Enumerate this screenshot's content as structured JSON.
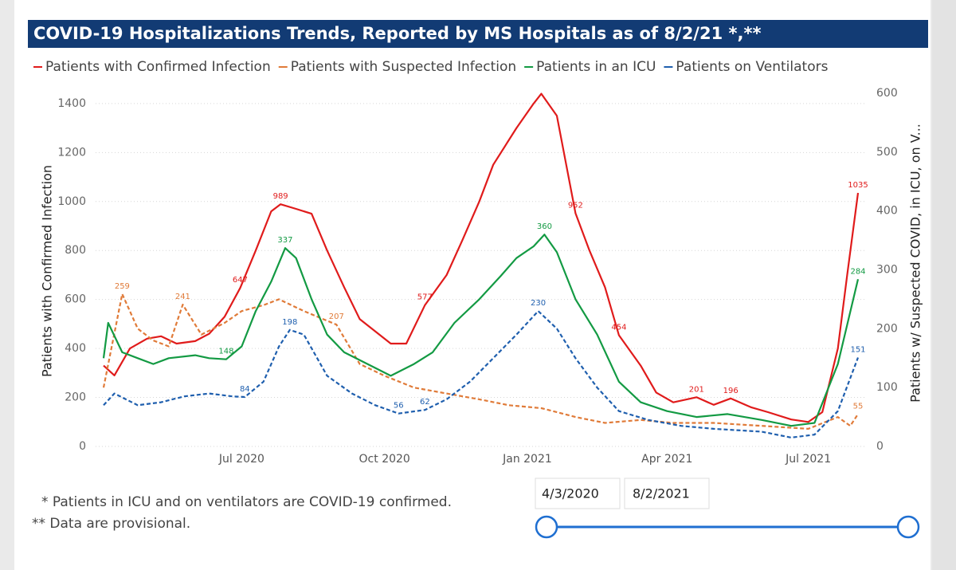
{
  "chart_data": {
    "type": "line",
    "title": "COVID-19 Hospitalizations Trends, Reported by MS Hospitals as of 8/2/21 *,**",
    "y_label": "Patients with Confirmed Infection",
    "y2_label": "Patients w/ Suspected COVID, in ICU, on V...",
    "xlim": [
      "2020-04-03",
      "2021-08-02"
    ],
    "xticks": [
      {
        "value": "2020-07-01",
        "label": "Jul 2020"
      },
      {
        "value": "2020-10-01",
        "label": "Oct 2020"
      },
      {
        "value": "2021-01-01",
        "label": "Jan 2021"
      },
      {
        "value": "2021-04-01",
        "label": "Apr 2021"
      },
      {
        "value": "2021-07-01",
        "label": "Jul 2021"
      }
    ],
    "ylim": [
      0,
      1442
    ],
    "yticks": [
      0,
      200,
      400,
      600,
      800,
      1000,
      1200,
      1400
    ],
    "y2lim": [
      0,
      600
    ],
    "y2ticks": [
      0,
      100,
      200,
      300,
      400,
      500,
      600
    ],
    "grid": true,
    "series": [
      {
        "name": "Patients with Confirmed Infection",
        "color": "#e01b1b",
        "dash": false,
        "x": [
          "2020-04-03",
          "2020-04-10",
          "2020-04-20",
          "2020-05-01",
          "2020-05-10",
          "2020-05-20",
          "2020-06-01",
          "2020-06-10",
          "2020-06-20",
          "2020-06-30",
          "2020-07-10",
          "2020-07-20",
          "2020-07-26",
          "2020-08-05",
          "2020-08-15",
          "2020-08-25",
          "2020-09-05",
          "2020-09-15",
          "2020-09-25",
          "2020-10-05",
          "2020-10-15",
          "2020-10-27",
          "2020-11-10",
          "2020-11-20",
          "2020-12-01",
          "2020-12-10",
          "2020-12-25",
          "2021-01-05",
          "2021-01-10",
          "2021-01-20",
          "2021-02-01",
          "2021-02-10",
          "2021-02-20",
          "2021-03-01",
          "2021-03-15",
          "2021-03-25",
          "2021-04-05",
          "2021-04-20",
          "2021-05-01",
          "2021-05-12",
          "2021-05-25",
          "2021-06-05",
          "2021-06-20",
          "2021-07-01",
          "2021-07-10",
          "2021-07-20",
          "2021-07-26",
          "2021-08-02"
        ],
        "values": [
          330,
          290,
          400,
          440,
          450,
          420,
          430,
          460,
          530,
          647,
          800,
          960,
          989,
          970,
          950,
          800,
          650,
          520,
          470,
          420,
          420,
          577,
          700,
          840,
          1000,
          1150,
          1300,
          1400,
          1440,
          1350,
          952,
          800,
          650,
          454,
          330,
          220,
          180,
          201,
          170,
          196,
          160,
          140,
          110,
          100,
          140,
          400,
          700,
          1035
        ],
        "value_labels": [
          null,
          null,
          null,
          null,
          null,
          null,
          null,
          null,
          null,
          "647",
          null,
          null,
          "989",
          null,
          null,
          null,
          null,
          null,
          null,
          null,
          null,
          "577",
          null,
          null,
          null,
          null,
          null,
          null,
          null,
          null,
          "952",
          null,
          null,
          "454",
          null,
          null,
          null,
          "201",
          null,
          "196",
          null,
          null,
          null,
          null,
          null,
          null,
          null,
          "1035"
        ]
      },
      {
        "name": "Patients with Suspected Infection",
        "color": "#e07b39",
        "dash": true,
        "axis": "y2",
        "x": [
          "2020-04-03",
          "2020-04-15",
          "2020-04-25",
          "2020-05-05",
          "2020-05-15",
          "2020-05-24",
          "2020-06-05",
          "2020-06-20",
          "2020-07-01",
          "2020-07-15",
          "2020-07-25",
          "2020-08-10",
          "2020-08-31",
          "2020-09-15",
          "2020-10-01",
          "2020-10-20",
          "2020-11-10",
          "2020-12-01",
          "2020-12-20",
          "2021-01-10",
          "2021-02-01",
          "2021-02-20",
          "2021-03-15",
          "2021-04-05",
          "2021-05-01",
          "2021-06-01",
          "2021-07-01",
          "2021-07-20",
          "2021-07-28",
          "2021-08-02"
        ],
        "values": [
          100,
          259,
          200,
          180,
          170,
          241,
          190,
          210,
          230,
          240,
          250,
          230,
          207,
          140,
          120,
          100,
          90,
          80,
          70,
          65,
          50,
          40,
          45,
          40,
          40,
          35,
          30,
          50,
          35,
          55
        ],
        "value_labels": [
          null,
          "259",
          null,
          null,
          null,
          "241",
          null,
          null,
          null,
          null,
          null,
          null,
          "207",
          null,
          null,
          null,
          null,
          null,
          null,
          null,
          null,
          null,
          null,
          null,
          null,
          null,
          null,
          null,
          null,
          "55"
        ]
      },
      {
        "name": "Patients in an ICU",
        "color": "#139a43",
        "dash": false,
        "axis": "y2",
        "x": [
          "2020-04-03",
          "2020-04-06",
          "2020-04-15",
          "2020-04-25",
          "2020-05-05",
          "2020-05-15",
          "2020-06-01",
          "2020-06-10",
          "2020-06-21",
          "2020-07-01",
          "2020-07-10",
          "2020-07-20",
          "2020-07-29",
          "2020-08-05",
          "2020-08-15",
          "2020-08-25",
          "2020-09-05",
          "2020-09-20",
          "2020-10-05",
          "2020-10-20",
          "2020-11-01",
          "2020-11-15",
          "2020-12-01",
          "2020-12-15",
          "2020-12-25",
          "2021-01-05",
          "2021-01-12",
          "2021-01-20",
          "2021-02-01",
          "2021-02-15",
          "2021-03-01",
          "2021-03-15",
          "2021-04-01",
          "2021-04-20",
          "2021-05-10",
          "2021-06-01",
          "2021-06-20",
          "2021-07-05",
          "2021-07-20",
          "2021-08-02"
        ],
        "values": [
          150,
          210,
          160,
          150,
          140,
          150,
          155,
          150,
          148,
          170,
          230,
          280,
          337,
          320,
          250,
          190,
          160,
          140,
          120,
          140,
          160,
          210,
          250,
          290,
          320,
          340,
          360,
          330,
          250,
          190,
          110,
          75,
          60,
          50,
          55,
          45,
          35,
          40,
          140,
          284
        ],
        "value_labels": [
          null,
          null,
          null,
          null,
          null,
          null,
          null,
          null,
          "148",
          null,
          null,
          null,
          "337",
          null,
          null,
          null,
          null,
          null,
          null,
          null,
          null,
          null,
          null,
          null,
          null,
          null,
          "360",
          null,
          null,
          null,
          null,
          null,
          null,
          null,
          null,
          null,
          null,
          null,
          null,
          "284"
        ]
      },
      {
        "name": "Patients on Ventilators",
        "color": "#1f5fae",
        "dash": true,
        "axis": "y2",
        "x": [
          "2020-04-03",
          "2020-04-10",
          "2020-04-25",
          "2020-05-10",
          "2020-05-25",
          "2020-06-10",
          "2020-06-25",
          "2020-07-03",
          "2020-07-15",
          "2020-07-25",
          "2020-08-01",
          "2020-08-10",
          "2020-08-25",
          "2020-09-10",
          "2020-09-25",
          "2020-10-10",
          "2020-10-27",
          "2020-11-10",
          "2020-11-25",
          "2020-12-10",
          "2020-12-25",
          "2021-01-08",
          "2021-01-20",
          "2021-02-01",
          "2021-02-15",
          "2021-03-01",
          "2021-03-20",
          "2021-04-10",
          "2021-05-01",
          "2021-06-01",
          "2021-06-20",
          "2021-07-05",
          "2021-07-20",
          "2021-08-02"
        ],
        "values": [
          70,
          90,
          70,
          75,
          85,
          90,
          85,
          84,
          110,
          170,
          198,
          190,
          120,
          90,
          70,
          56,
          62,
          80,
          110,
          150,
          190,
          230,
          200,
          150,
          100,
          60,
          45,
          35,
          30,
          25,
          15,
          20,
          60,
          151
        ],
        "value_labels": [
          null,
          null,
          null,
          null,
          null,
          null,
          null,
          "84",
          null,
          null,
          "198",
          null,
          null,
          null,
          null,
          "56",
          "62",
          null,
          null,
          null,
          null,
          "230",
          null,
          null,
          null,
          null,
          null,
          null,
          null,
          null,
          null,
          null,
          null,
          "151"
        ]
      }
    ]
  },
  "footnotes": [
    "* Patients in ICU and on ventilators are COVID-19 confirmed.",
    "** Data are provisional."
  ],
  "slicer": {
    "start": "4/3/2020",
    "end": "8/2/2021"
  }
}
